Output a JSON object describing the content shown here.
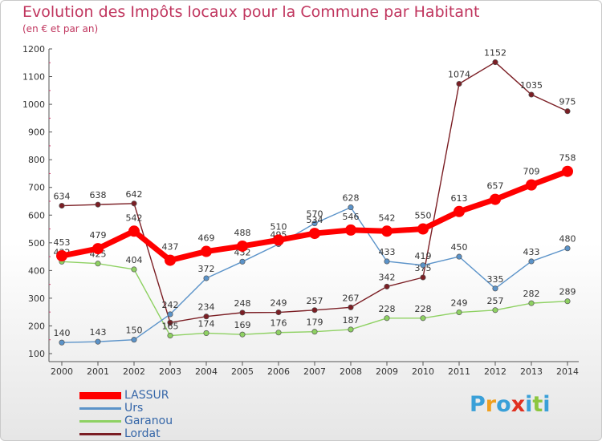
{
  "title": "Evolution des Impôts locaux pour la Commune par Habitant",
  "subtitle": "(en € et par an)",
  "logo": {
    "letters": [
      {
        "ch": "P",
        "color": "#3aa0d8"
      },
      {
        "ch": "r",
        "color": "#f0a020"
      },
      {
        "ch": "o",
        "color": "#3aa0d8"
      },
      {
        "ch": "x",
        "color": "#e03020"
      },
      {
        "ch": "i",
        "color": "#3aa0d8"
      },
      {
        "ch": "t",
        "color": "#8cc63f"
      },
      {
        "ch": "i",
        "color": "#3aa0d8"
      }
    ]
  },
  "chart_data": {
    "type": "line",
    "title": "Evolution des Impôts locaux pour la Commune par Habitant",
    "subtitle": "(en € et par an)",
    "x": [
      "2000",
      "2001",
      "2002",
      "2003",
      "2004",
      "2005",
      "2006",
      "2007",
      "2008",
      "2009",
      "2010",
      "2011",
      "2012",
      "2013",
      "2014"
    ],
    "ylim": [
      100,
      1200
    ],
    "yticks": [
      100,
      200,
      300,
      400,
      500,
      600,
      700,
      800,
      900,
      1000,
      1100,
      1200
    ],
    "grid": false,
    "legend_position": "bottom-left",
    "series": [
      {
        "name": "Lordat",
        "color": "#7b1e24",
        "values": [
          634,
          638,
          642,
          212,
          234,
          248,
          249,
          257,
          267,
          342,
          375,
          1074,
          1152,
          1035,
          975
        ],
        "labels": [
          "634",
          "638",
          "642",
          "",
          "234",
          "248",
          "249",
          "257",
          "267",
          "342",
          "375",
          "1074",
          "1152",
          "1035",
          "975"
        ]
      },
      {
        "name": "Garanou",
        "color": "#8ed162",
        "values": [
          432,
          425,
          404,
          165,
          174,
          169,
          176,
          179,
          187,
          228,
          228,
          249,
          257,
          282,
          289
        ],
        "labels": [
          "432",
          "425",
          "404",
          "165",
          "174",
          "169",
          "176",
          "179",
          "187",
          "228",
          "228",
          "249",
          "257",
          "282",
          "289"
        ]
      },
      {
        "name": "Urs",
        "color": "#5b93c9",
        "values": [
          140,
          143,
          150,
          242,
          372,
          432,
          495,
          570,
          628,
          433,
          419,
          450,
          335,
          433,
          480
        ],
        "labels": [
          "140",
          "143",
          "150",
          "242",
          "372",
          "432",
          "495",
          "570",
          "628",
          "433",
          "419",
          "450",
          "335",
          "433",
          "480"
        ]
      },
      {
        "name": "LASSUR",
        "color": "#ff0000",
        "values": [
          453,
          479,
          542,
          437,
          469,
          488,
          510,
          534,
          546,
          542,
          550,
          613,
          657,
          709,
          758
        ],
        "labels": [
          "453",
          "479",
          "542",
          "437",
          "469",
          "488",
          "510",
          "534",
          "546",
          "542",
          "550",
          "613",
          "657",
          "709",
          "758"
        ]
      }
    ],
    "legend": [
      "LASSUR",
      "Urs",
      "Garanou",
      "Lordat"
    ]
  }
}
